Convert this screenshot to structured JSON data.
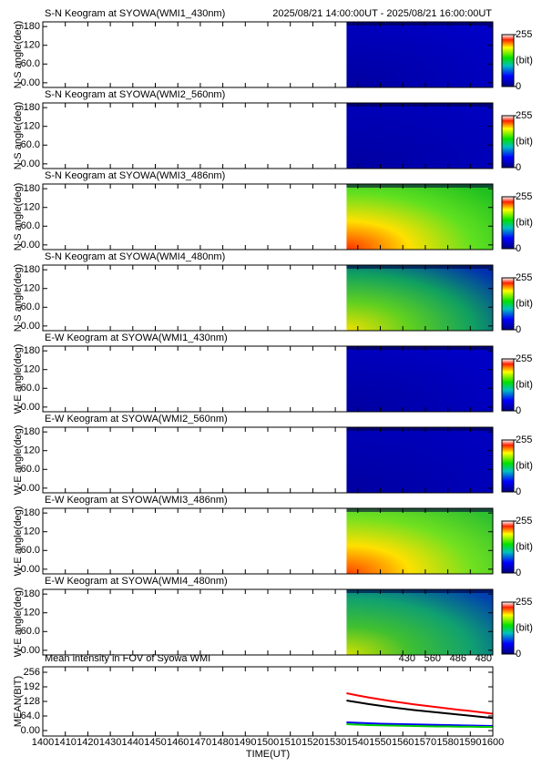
{
  "chart_data": [
    {
      "type": "keogram",
      "title": "S-N Keogram at SYOWA(WMI1_430nm)",
      "subtitle": "2025/08/21 14:00:00UT - 2025/08/21 16:00:00UT",
      "ylabel": "N-S angle(deg)",
      "x": [
        1535,
        1600
      ],
      "xlim": [
        1400,
        1600
      ],
      "ylim": [
        -15,
        195
      ],
      "yticks": [
        {
          "value": 0,
          "label": "0.00"
        },
        {
          "value": 60,
          "label": "60.0"
        },
        120,
        180
      ],
      "colors": [
        "#0000a0",
        "#0000c8"
      ],
      "clim": [
        0,
        255
      ],
      "colorbar_ticks": [
        0,
        255
      ],
      "colorbar_label": "(bit)"
    },
    {
      "type": "keogram",
      "title": "S-N Keogram at SYOWA(WMI2_560nm)",
      "ylabel": "N-S angle(deg)",
      "x": [
        1535,
        1600
      ],
      "xlim": [
        1400,
        1600
      ],
      "ylim": [
        -15,
        195
      ],
      "yticks": [
        {
          "value": 0,
          "label": "0.00"
        },
        {
          "value": 60,
          "label": "60.0"
        },
        120,
        180
      ],
      "colors": [
        "#0000a0",
        "#0000c0"
      ],
      "clim": [
        0,
        255
      ],
      "colorbar_ticks": [
        0,
        255
      ],
      "colorbar_label": "(bit)"
    },
    {
      "type": "keogram",
      "title": "S-N Keogram at SYOWA(WMI3_486nm)",
      "ylabel": "N-S angle(deg)",
      "x": [
        1535,
        1600
      ],
      "xlim": [
        1400,
        1600
      ],
      "ylim": [
        -15,
        195
      ],
      "yticks": [
        {
          "value": 0,
          "label": "0.00"
        },
        {
          "value": 60,
          "label": "60.0"
        },
        120,
        180
      ],
      "colors": [
        "#ff3000",
        "#ffe000",
        "#60e020",
        "#20c020"
      ],
      "clim": [
        0,
        255
      ],
      "colorbar_ticks": [
        0,
        255
      ],
      "colorbar_label": "(bit)"
    },
    {
      "type": "keogram",
      "title": "S-N Keogram at SYOWA(WMI4_480nm)",
      "ylabel": "N-S angle(deg)",
      "x": [
        1535,
        1600
      ],
      "xlim": [
        1400,
        1600
      ],
      "ylim": [
        -15,
        195
      ],
      "yticks": [
        {
          "value": 0,
          "label": "0.00"
        },
        {
          "value": 60,
          "label": "60.0"
        },
        120,
        180
      ],
      "colors": [
        "#f0e000",
        "#60d020",
        "#10a060",
        "#0030b0"
      ],
      "clim": [
        0,
        255
      ],
      "colorbar_ticks": [
        0,
        255
      ],
      "colorbar_label": "(bit)"
    },
    {
      "type": "keogram",
      "title": "E-W Keogram at SYOWA(WMI1_430nm)",
      "ylabel": "W-E angle(deg)",
      "x": [
        1535,
        1600
      ],
      "xlim": [
        1400,
        1600
      ],
      "ylim": [
        -15,
        195
      ],
      "yticks": [
        {
          "value": 0,
          "label": "0.00"
        },
        {
          "value": 60,
          "label": "60.0"
        },
        120,
        180
      ],
      "colors": [
        "#0000a0",
        "#0000c8"
      ],
      "clim": [
        0,
        255
      ],
      "colorbar_ticks": [
        0,
        255
      ],
      "colorbar_label": "(bit)"
    },
    {
      "type": "keogram",
      "title": "E-W Keogram at SYOWA(WMI2_560nm)",
      "ylabel": "W-E angle(deg)",
      "x": [
        1535,
        1600
      ],
      "xlim": [
        1400,
        1600
      ],
      "ylim": [
        -15,
        195
      ],
      "yticks": [
        {
          "value": 0,
          "label": "0.00"
        },
        {
          "value": 60,
          "label": "60.0"
        },
        120,
        180
      ],
      "colors": [
        "#0000a0",
        "#0000c0"
      ],
      "clim": [
        0,
        255
      ],
      "colorbar_ticks": [
        0,
        255
      ],
      "colorbar_label": "(bit)"
    },
    {
      "type": "keogram",
      "title": "E-W Keogram at SYOWA(WMI3_486nm)",
      "ylabel": "W-E angle(deg)",
      "x": [
        1535,
        1600
      ],
      "xlim": [
        1400,
        1600
      ],
      "ylim": [
        -15,
        195
      ],
      "yticks": [
        {
          "value": 0,
          "label": "0.00"
        },
        {
          "value": 60,
          "label": "60.0"
        },
        120,
        180
      ],
      "colors": [
        "#ff4000",
        "#ffe000",
        "#70e020",
        "#30c030"
      ],
      "clim": [
        0,
        255
      ],
      "colorbar_ticks": [
        0,
        255
      ],
      "colorbar_label": "(bit)"
    },
    {
      "type": "keogram",
      "title": "E-W Keogram at SYOWA(WMI4_480nm)",
      "ylabel": "W-E angle(deg)",
      "x": [
        1535,
        1600
      ],
      "xlim": [
        1400,
        1600
      ],
      "ylim": [
        -15,
        195
      ],
      "yticks": [
        {
          "value": 0,
          "label": "0.00"
        },
        {
          "value": 60,
          "label": "60.0"
        },
        120,
        180
      ],
      "colors": [
        "#d0e000",
        "#40c030",
        "#10a070",
        "#0040b0"
      ],
      "clim": [
        0,
        255
      ],
      "colorbar_ticks": [
        0,
        255
      ],
      "colorbar_label": "(bit)"
    },
    {
      "type": "line",
      "title": "Mean intensity in FOV of Syowa WMI",
      "xlabel": "TIME(UT)",
      "ylabel": "MEAN(BIT)",
      "x": [
        1535,
        1540,
        1545,
        1550,
        1555,
        1560,
        1565,
        1570,
        1575,
        1580,
        1585,
        1590,
        1595,
        1600
      ],
      "series": [
        {
          "name": "430",
          "color": "#0000ff",
          "values": [
            36,
            34,
            32,
            30,
            29,
            28,
            27,
            26,
            25,
            24,
            23,
            22,
            21,
            20
          ]
        },
        {
          "name": "560",
          "color": "#00cc00",
          "values": [
            28,
            26,
            24,
            23,
            22,
            21,
            20,
            19,
            18,
            18,
            17,
            17,
            16,
            16
          ]
        },
        {
          "name": "486",
          "color": "#ff0000",
          "values": [
            164,
            154,
            145,
            137,
            129,
            122,
            115,
            109,
            103,
            97,
            91,
            86,
            80,
            74
          ]
        },
        {
          "name": "480",
          "color": "#000000",
          "values": [
            132,
            124,
            116,
            109,
            102,
            96,
            90,
            85,
            80,
            75,
            70,
            65,
            60,
            55
          ]
        }
      ],
      "xlim": [
        1400,
        1600
      ],
      "xticks": [
        1400,
        1410,
        1420,
        1430,
        1440,
        1450,
        1460,
        1470,
        1480,
        1490,
        1500,
        1510,
        1520,
        1530,
        1540,
        1550,
        1560,
        1570,
        1580,
        1590,
        1600
      ],
      "ylim": [
        -24,
        280
      ],
      "yticks": [
        {
          "value": 0,
          "label": "0.00"
        },
        {
          "value": 64,
          "label": "64.0"
        },
        128,
        192,
        256
      ]
    }
  ]
}
